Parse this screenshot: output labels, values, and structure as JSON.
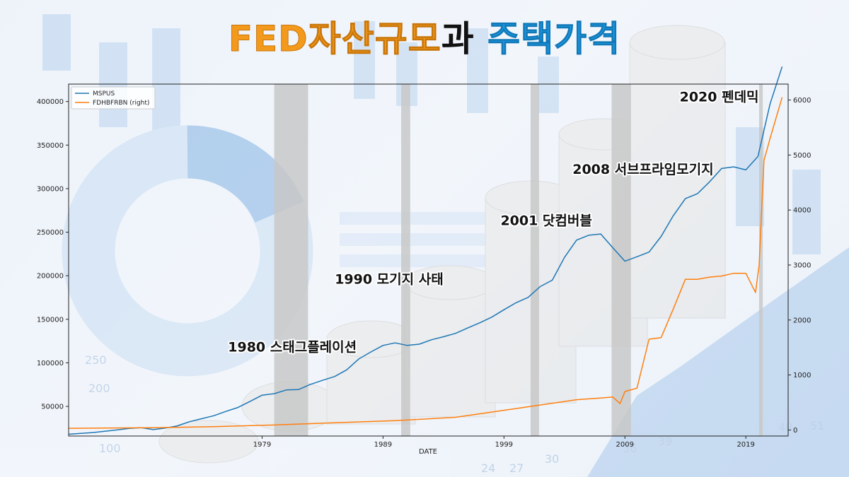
{
  "title": {
    "part1": "FED자산규모",
    "part2": "과",
    "part3": "주택가격"
  },
  "colors": {
    "mspus": "#1f77b4",
    "fed": "#ff7f0e",
    "recession": "#c8c8c8",
    "title_orange": "#f39a1c",
    "title_blue": "#1e9be6"
  },
  "chart_data": {
    "type": "line",
    "xlabel": "DATE",
    "xlim": [
      1963,
      2022.5
    ],
    "x_ticks": [
      1979,
      1989,
      1999,
      2009,
      2019
    ],
    "y_left": {
      "ticks": [
        50000,
        100000,
        150000,
        200000,
        250000,
        300000,
        350000,
        400000
      ],
      "ylim": [
        16000,
        420000
      ]
    },
    "y_right": {
      "ticks": [
        0,
        1000,
        2000,
        3000,
        4000,
        5000,
        6000
      ],
      "ylim": [
        -110,
        6290
      ]
    },
    "legend": {
      "placement": "top-left",
      "entries": [
        "MSPUS",
        "FDHBFRBN (right)"
      ]
    },
    "recessions": [
      [
        1980.0,
        1982.8
      ],
      [
        1990.5,
        1991.25
      ],
      [
        2001.2,
        2001.9
      ],
      [
        2007.9,
        2009.5
      ],
      [
        2020.1,
        2020.4
      ]
    ],
    "series": [
      {
        "name": "MSPUS",
        "axis": "left",
        "x": [
          1963,
          1964,
          1965,
          1966,
          1967,
          1968,
          1969,
          1970,
          1971,
          1972,
          1973,
          1974,
          1975,
          1976,
          1977,
          1978,
          1979,
          1980,
          1981,
          1982,
          1983,
          1984,
          1985,
          1986,
          1987,
          1988,
          1989,
          1990,
          1991,
          1992,
          1993,
          1994,
          1995,
          1996,
          1997,
          1998,
          1999,
          2000,
          2001,
          2002,
          2003,
          2004,
          2005,
          2006,
          2007,
          2008,
          2009,
          2010,
          2011,
          2012,
          2013,
          2014,
          2015,
          2016,
          2017,
          2018,
          2019,
          2020,
          2021,
          2022
        ],
        "values": [
          18000,
          19000,
          20000,
          21500,
          23000,
          24700,
          25600,
          23400,
          25200,
          27600,
          32500,
          35900,
          39300,
          44200,
          48800,
          55700,
          62900,
          64600,
          68900,
          69300,
          75300,
          79900,
          84300,
          92000,
          104500,
          112500,
          120000,
          122900,
          120000,
          121500,
          126500,
          130000,
          133900,
          140000,
          146000,
          152500,
          161000,
          169000,
          175200,
          187600,
          195000,
          221000,
          240900,
          246500,
          247900,
          232100,
          216700,
          221800,
          227200,
          245200,
          268900,
          288500,
          294200,
          307800,
          323100,
          325000,
          321500,
          336900,
          397100,
          440000
        ]
      },
      {
        "name": "FDHBFRBN (right)",
        "axis": "right",
        "x": [
          1963,
          1970,
          1975,
          1980,
          1985,
          1990,
          1995,
          2000,
          2005,
          2007,
          2008,
          2008.6,
          2009,
          2010,
          2011,
          2012,
          2013,
          2014,
          2015,
          2016,
          2017,
          2018,
          2019,
          2019.8,
          2020.1,
          2020.5,
          2021,
          2022
        ],
        "values": [
          30,
          40,
          60,
          90,
          130,
          170,
          230,
          390,
          550,
          580,
          600,
          480,
          700,
          760,
          1650,
          1680,
          2200,
          2740,
          2740,
          2780,
          2800,
          2850,
          2850,
          2500,
          3000,
          4900,
          5300,
          6050
        ]
      }
    ],
    "annotations": [
      {
        "text": "1980 스태그플레이션",
        "x": 1981.5,
        "y": 113000
      },
      {
        "text": "1990 모기지 사태",
        "x": 1989.5,
        "y": 191000
      },
      {
        "text": "2001 닷컴버블",
        "x": 2002.5,
        "y": 258000
      },
      {
        "text": "2008 서브프라임모기지",
        "x": 2010.5,
        "y": 317000
      },
      {
        "text": "2020  펜데믹",
        "x": 2016.8,
        "y": 400000
      }
    ]
  }
}
